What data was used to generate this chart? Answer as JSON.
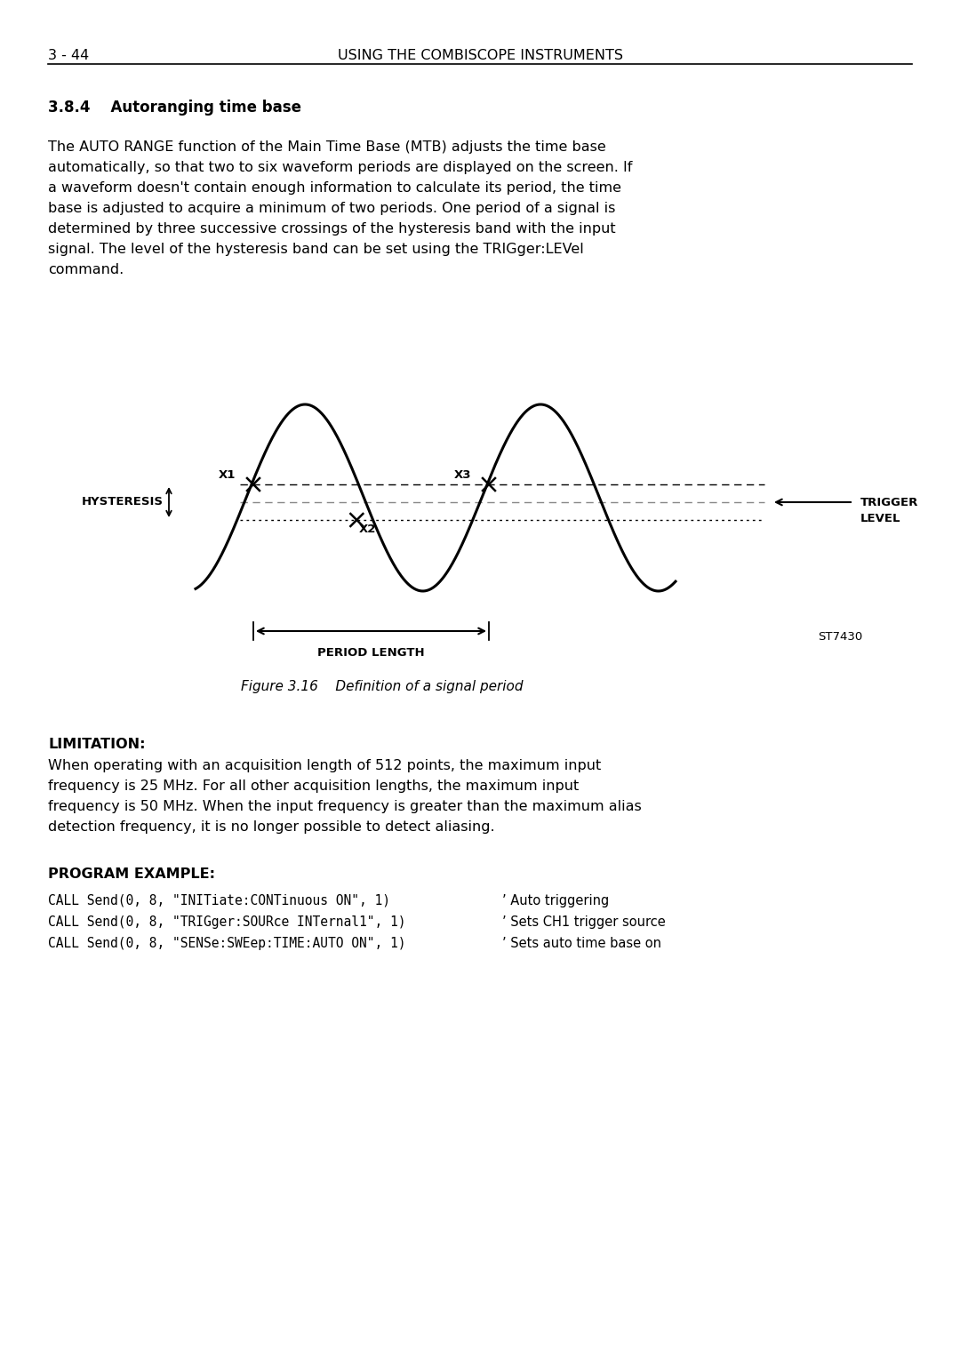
{
  "page_number": "3 - 44",
  "header_title": "USING THE COMBISCOPE INSTRUMENTS",
  "section_title": "3.8.4    Autoranging time base",
  "para1_lines": [
    "The AUTO RANGE function of the Main Time Base (MTB) adjusts the time base",
    "automatically, so that two to six waveform periods are displayed on the screen. If",
    "a waveform doesn't contain enough information to calculate its period, the time",
    "base is adjusted to acquire a minimum of two periods. One period of a signal is",
    "determined by three successive crossings of the hysteresis band with the input",
    "signal. The level of the hysteresis band can be set using the TRIGger:LEVel",
    "command."
  ],
  "figure_caption": "Figure 3.16    Definition of a signal period",
  "limitation_title": "LIMITATION:",
  "limit_lines": [
    "When operating with an acquisition length of 512 points, the maximum input",
    "frequency is 25 MHz. For all other acquisition lengths, the maximum input",
    "frequency is 50 MHz. When the input frequency is greater than the maximum alias",
    "detection frequency, it is no longer possible to detect aliasing."
  ],
  "program_title": "PROGRAM EXAMPLE:",
  "code_lines": [
    "CALL Send(0, 8, \"INITiate:CONTinuous ON\", 1)",
    "CALL Send(0, 8, \"TRIGger:SOURce INTernal1\", 1)",
    "CALL Send(0, 8, \"SENSe:SWEep:TIME:AUTO ON\", 1)"
  ],
  "code_comments": [
    "’ Auto triggering",
    "’ Sets CH1 trigger source",
    "’ Sets auto time base on"
  ],
  "bg_color": "#ffffff",
  "text_color": "#000000"
}
